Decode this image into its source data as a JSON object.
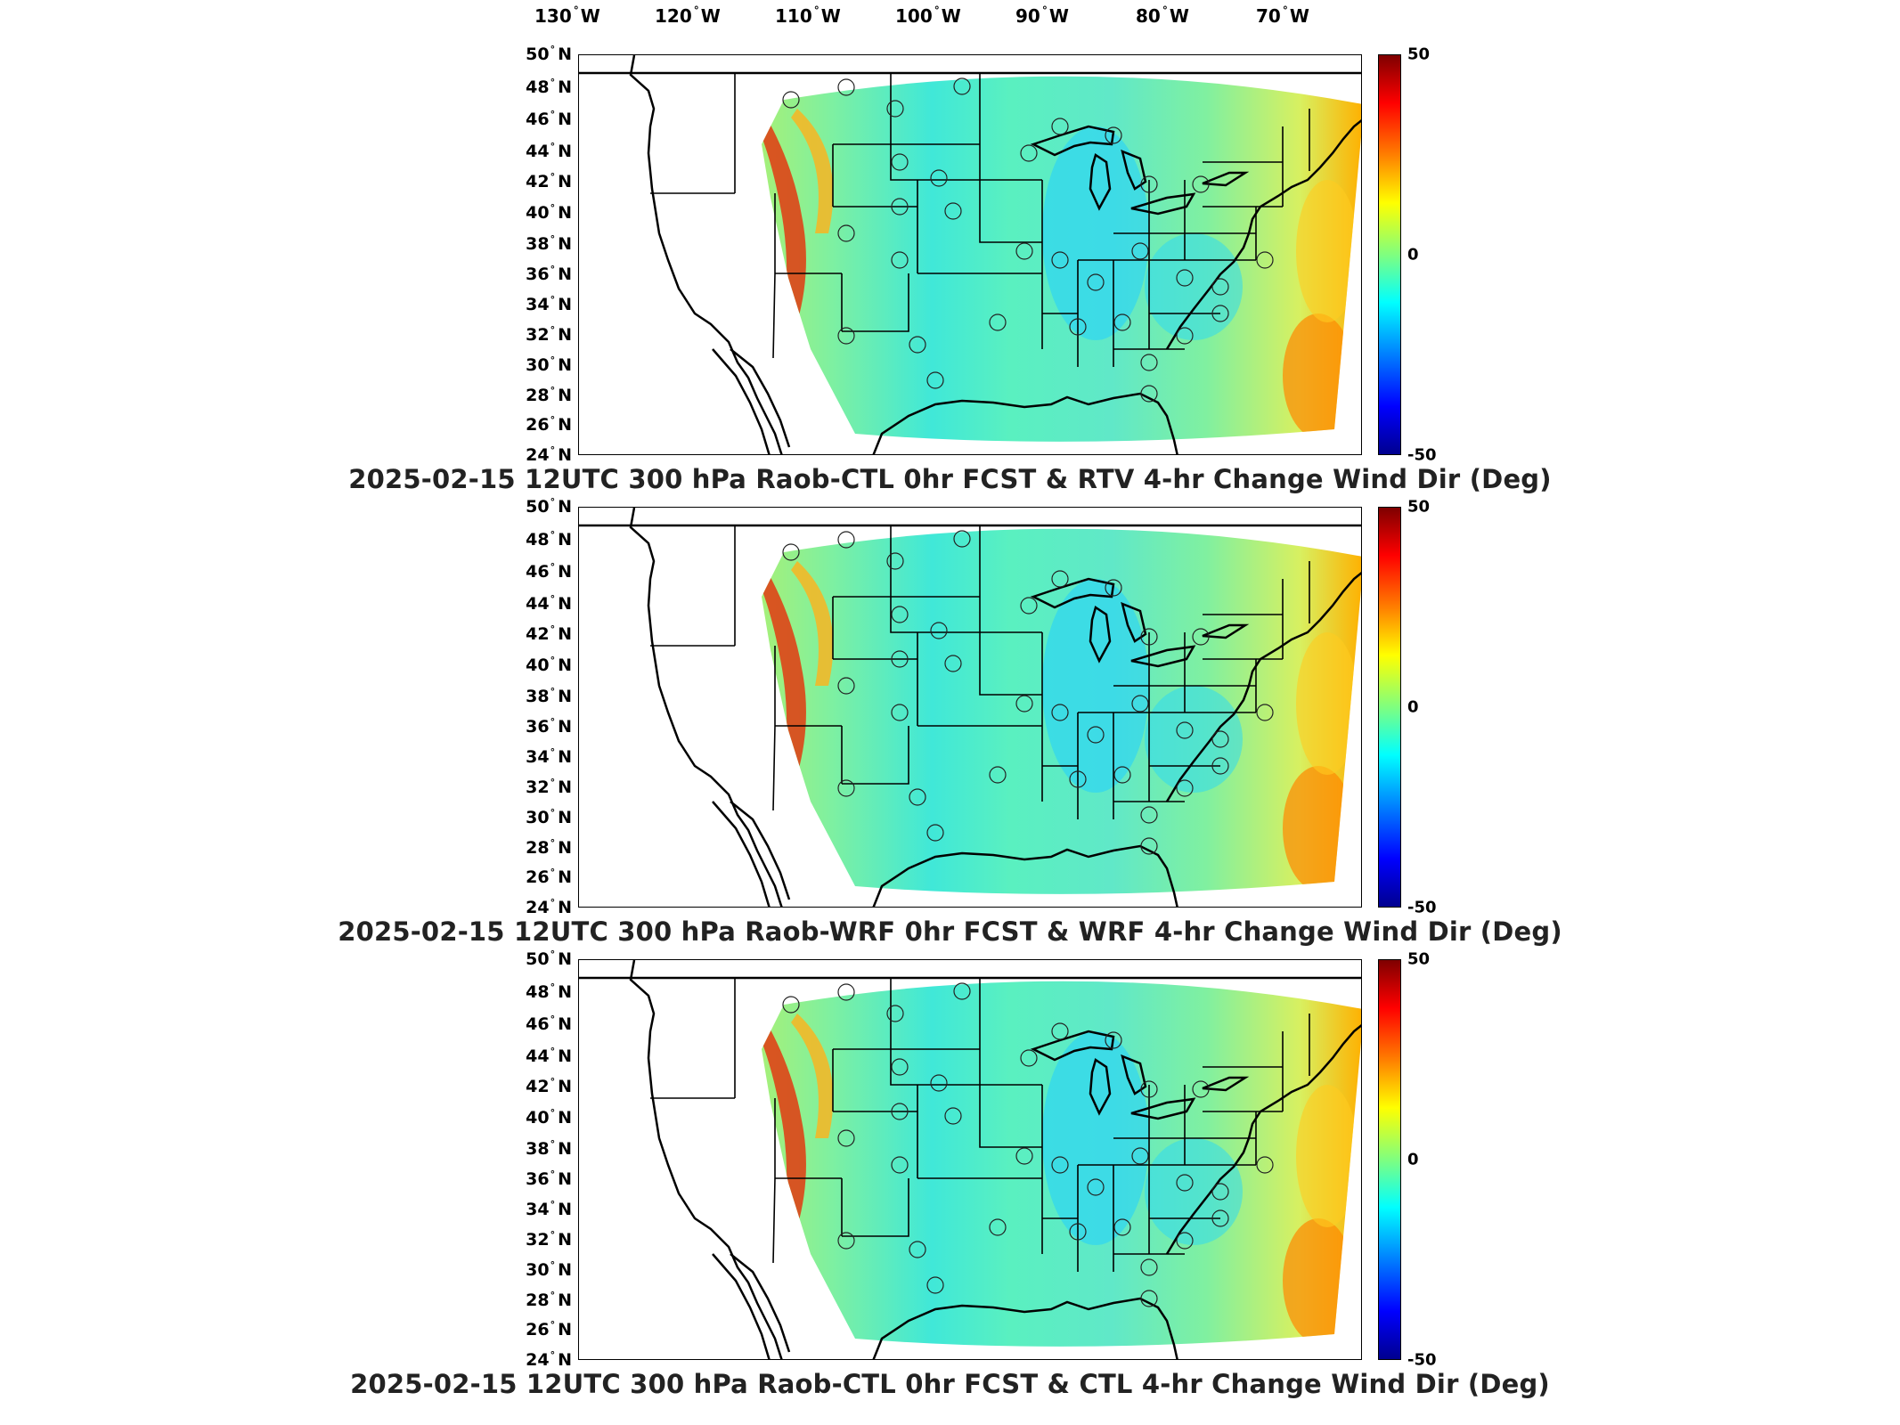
{
  "longitude_labels": [
    {
      "value": "130",
      "hemi": "W"
    },
    {
      "value": "120",
      "hemi": "W"
    },
    {
      "value": "110",
      "hemi": "W"
    },
    {
      "value": "100",
      "hemi": "W"
    },
    {
      "value": "90",
      "hemi": "W"
    },
    {
      "value": "80",
      "hemi": "W"
    },
    {
      "value": "70",
      "hemi": "W"
    }
  ],
  "latitude_labels": [
    {
      "value": "50",
      "hemi": "N"
    },
    {
      "value": "48",
      "hemi": "N"
    },
    {
      "value": "46",
      "hemi": "N"
    },
    {
      "value": "44",
      "hemi": "N"
    },
    {
      "value": "42",
      "hemi": "N"
    },
    {
      "value": "40",
      "hemi": "N"
    },
    {
      "value": "38",
      "hemi": "N"
    },
    {
      "value": "36",
      "hemi": "N"
    },
    {
      "value": "34",
      "hemi": "N"
    },
    {
      "value": "32",
      "hemi": "N"
    },
    {
      "value": "30",
      "hemi": "N"
    },
    {
      "value": "28",
      "hemi": "N"
    },
    {
      "value": "26",
      "hemi": "N"
    },
    {
      "value": "24",
      "hemi": "N"
    }
  ],
  "degree_symbol": "°",
  "colorbar": {
    "max": "50",
    "mid": "0",
    "min": "-50",
    "colormap": "jet"
  },
  "panels": [
    {
      "title": "2025-02-15 12UTC 300 hPa Raob-CTL 0hr FCST & RTV 4-hr Change Wind Dir (Deg)"
    },
    {
      "title": "2025-02-15 12UTC 300 hPa Raob-WRF 0hr FCST & WRF 4-hr Change Wind Dir (Deg)"
    },
    {
      "title": "2025-02-15 12UTC 300 hPa Raob-CTL 0hr FCST & CTL 4-hr Change Wind Dir (Deg)"
    }
  ]
}
